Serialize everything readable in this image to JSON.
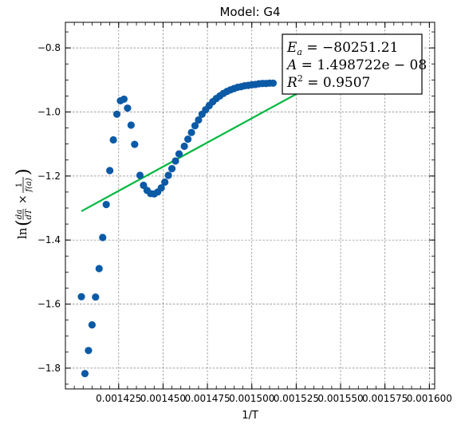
{
  "chart_data": {
    "type": "scatter",
    "title": "Model: G4",
    "xlabel": "1/T",
    "ylabel_parts": {
      "ln": "ln",
      "da": "da",
      "dT": "dT",
      "times": "×",
      "one": "1",
      "fa": "f(a)"
    },
    "xlim": [
      0.001395,
      0.001603
    ],
    "ylim": [
      -1.865,
      -0.72
    ],
    "x_ticks": [
      0.001425,
      0.00145,
      0.001475,
      0.0015,
      0.001525,
      0.00155,
      0.001575,
      0.0016
    ],
    "x_tick_labels": [
      "0.001425",
      "0.001450",
      "0.001475",
      "0.001500",
      "0.001525",
      "0.001550",
      "0.001575",
      "0.001600"
    ],
    "y_ticks": [
      -1.8,
      -1.6,
      -1.4,
      -1.2,
      -1.0,
      -0.8
    ],
    "y_tick_labels": [
      "−1.8",
      "−1.6",
      "−1.4",
      "−1.2",
      "−1.0",
      "−0.8"
    ],
    "grid": true,
    "series": [
      {
        "type": "scatter",
        "color": "#0b5aa6",
        "points": [
          [
            0.001404,
            -1.577
          ],
          [
            0.001406,
            -1.817
          ],
          [
            0.001408,
            -1.745
          ],
          [
            0.00141,
            -1.665
          ],
          [
            0.001412,
            -1.578
          ],
          [
            0.001414,
            -1.489
          ],
          [
            0.001416,
            -1.392
          ],
          [
            0.001418,
            -1.289
          ],
          [
            0.00142,
            -1.183
          ],
          [
            0.001422,
            -1.087
          ],
          [
            0.001424,
            -1.007
          ],
          [
            0.001426,
            -0.965
          ],
          [
            0.001428,
            -0.96
          ],
          [
            0.00143,
            -0.988
          ],
          [
            0.001432,
            -1.041
          ],
          [
            0.001434,
            -1.101
          ],
          [
            0.001437,
            -1.198
          ],
          [
            0.001439,
            -1.229
          ],
          [
            0.001441,
            -1.245
          ],
          [
            0.001443,
            -1.255
          ],
          [
            0.001445,
            -1.256
          ],
          [
            0.001447,
            -1.25
          ],
          [
            0.001449,
            -1.237
          ],
          [
            0.001451,
            -1.219
          ],
          [
            0.001453,
            -1.198
          ],
          [
            0.001455,
            -1.177
          ],
          [
            0.001457,
            -1.153
          ],
          [
            0.001459,
            -1.131
          ],
          [
            0.001462,
            -1.107
          ],
          [
            0.001464,
            -1.085
          ],
          [
            0.001466,
            -1.064
          ],
          [
            0.001468,
            -1.043
          ],
          [
            0.00147,
            -1.025
          ],
          [
            0.001472,
            -1.007
          ],
          [
            0.001474,
            -0.993
          ],
          [
            0.001476,
            -0.98
          ],
          [
            0.001478,
            -0.968
          ],
          [
            0.00148,
            -0.958
          ],
          [
            0.001482,
            -0.95
          ],
          [
            0.001484,
            -0.942
          ],
          [
            0.001486,
            -0.936
          ],
          [
            0.001488,
            -0.931
          ],
          [
            0.00149,
            -0.927
          ],
          [
            0.001492,
            -0.923
          ],
          [
            0.001494,
            -0.921
          ],
          [
            0.001496,
            -0.918
          ],
          [
            0.001498,
            -0.917
          ],
          [
            0.0015,
            -0.915
          ],
          [
            0.001502,
            -0.914
          ],
          [
            0.001504,
            -0.912
          ],
          [
            0.001506,
            -0.911
          ],
          [
            0.001508,
            -0.911
          ],
          [
            0.00151,
            -0.91
          ],
          [
            0.001512,
            -0.91
          ]
        ]
      },
      {
        "type": "line",
        "color": "#00b840",
        "points": [
          [
            0.001404,
            -1.31
          ],
          [
            0.001532,
            -0.923
          ]
        ]
      }
    ],
    "annotation": {
      "ea_symbol": "E",
      "ea_sub": "a",
      "ea_value": " = −80251.21",
      "a_symbol": "A",
      "a_value": " = 1.498722e − 08",
      "r2_symbol": "R",
      "r2_sup": "2",
      "r2_value": " = 0.9507",
      "placement": "top-right"
    }
  }
}
